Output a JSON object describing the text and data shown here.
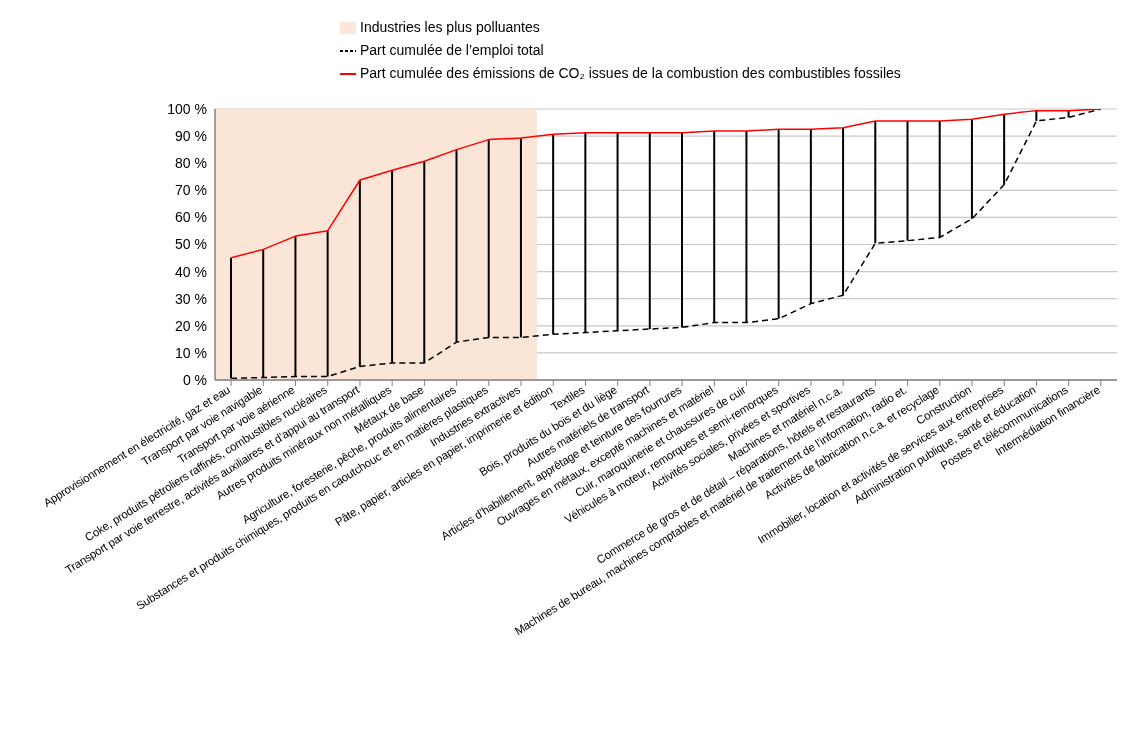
{
  "chart_data": {
    "type": "line",
    "categories": [
      "Approvisionnement en électricité, gaz et eau",
      "Transport par voie navigable",
      "Transport par voie aérienne",
      "Coke, produits pétroliers raffinés, combustibles nucléaires",
      "Transport par voie terrestre, activités auxiliaires et d’appui au transport",
      "Autres produits minéraux non métalliques",
      "Métaux de base",
      "Agriculture, foresterie, pêche, produits alimentaires",
      "Substances et produits chimiques, produits en caoutchouc et en matières plastiques",
      "Industries extractives",
      "Pâte, papier, articles en papier, imprimerie et édition",
      "Textiles",
      "Bois, produits du bois et du liège",
      "Autres matériels de transport",
      "Articles d’habillement, apprêtage et teinture des fourrures",
      "Ouvrages en métaux, excepté machines et matériel",
      "Cuir, maroquinerie et chaussures de cuir",
      "Véhicules à moteur, remorques et semi-remorques",
      "Activités sociales, privées et sportives",
      "Machines et matériel n.c.a.",
      "Commerce de gros et de détail – réparations, hôtels et restaurants",
      "Machines de bureau, machines comptables et matériel de traitement de l’information, radio et.",
      "Activités de fabrication n.c.a. et recyclage",
      "Construction",
      "Immobilier, location et activités de services aux entreprises",
      "Administration publique, santé et éducation",
      "Postes et télécommunications",
      "Intermédiation financière"
    ],
    "series": [
      {
        "type": "bar",
        "color": "#000000",
        "base": [
          0.6,
          0.9,
          1.3,
          1.3,
          5.0,
          6.3,
          6.3,
          14.0,
          15.7,
          15.7,
          16.9,
          17.5,
          18.2,
          18.8,
          19.4,
          21.2,
          21.2,
          22.6,
          28.2,
          31.3,
          50.5,
          51.4,
          52.6,
          59.5,
          72.1,
          95.6,
          96.9,
          null
        ],
        "values": [
          44.5,
          47.3,
          51.8,
          53.8,
          68.8,
          71.1,
          74.4,
          71.0,
          73.0,
          73.6,
          73.8,
          73.7,
          73.0,
          72.4,
          71.8,
          70.7,
          70.7,
          69.9,
          64.3,
          61.8,
          45.1,
          44.2,
          43.0,
          36.7,
          26.0,
          3.8,
          2.5,
          null
        ]
      },
      {
        "name": "Part cumulée de l’emploi total",
        "color": "#000000",
        "line_style": "dashed",
        "values": [
          0.6,
          0.9,
          1.3,
          1.3,
          5.0,
          6.3,
          6.3,
          14.0,
          15.7,
          15.7,
          16.9,
          17.5,
          18.2,
          18.8,
          19.4,
          21.2,
          21.2,
          22.6,
          28.2,
          31.3,
          50.5,
          51.4,
          52.6,
          59.5,
          72.1,
          95.6,
          96.9,
          100
        ]
      },
      {
        "name": "Part cumulée des émissions de CO₂ issues de la combustion des combustibles fossiles",
        "color": "#ff0000",
        "line_style": "solid",
        "values": [
          45.1,
          48.2,
          53.1,
          55.1,
          73.8,
          77.4,
          80.7,
          85.0,
          88.7,
          89.3,
          90.7,
          91.2,
          91.2,
          91.2,
          91.2,
          91.9,
          91.9,
          92.5,
          92.5,
          93.1,
          95.6,
          95.6,
          95.6,
          96.2,
          98.1,
          99.4,
          99.4,
          100
        ]
      }
    ],
    "bands": [
      {
        "axis": "x",
        "from": "Approvisionnement en électricité, gaz et eau",
        "to": "Industries extractives",
        "label": "Industries les plus polluantes",
        "color": "#fbe5d6"
      }
    ],
    "ylim": [
      0,
      100
    ],
    "yticks": [
      {
        "value": 0,
        "label": "0 %"
      },
      {
        "value": 10,
        "label": "10 %"
      },
      {
        "value": 20,
        "label": "20 %"
      },
      {
        "value": 30,
        "label": "30 %"
      },
      {
        "value": 40,
        "label": "40 %"
      },
      {
        "value": 50,
        "label": "50 %"
      },
      {
        "value": 60,
        "label": "60 %"
      },
      {
        "value": 70,
        "label": "70 %"
      },
      {
        "value": 80,
        "label": "80 %"
      },
      {
        "value": 90,
        "label": "90 %"
      },
      {
        "value": 100,
        "label": "100 %"
      }
    ],
    "grid": "y",
    "legend": "top",
    "marker": "none"
  }
}
